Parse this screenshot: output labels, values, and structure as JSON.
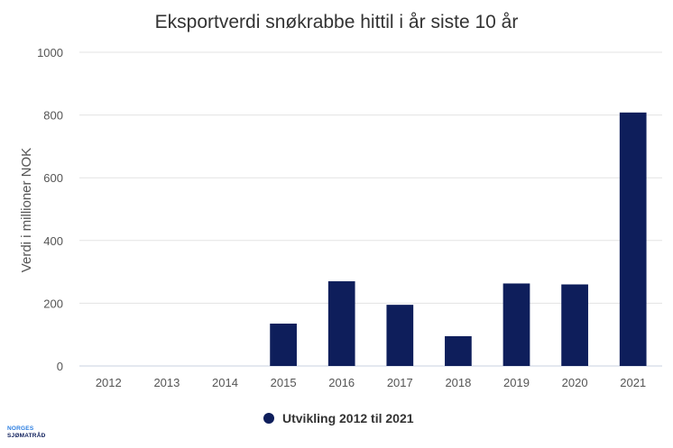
{
  "logo": {
    "line1": "NORGES",
    "line2": "SJØMATRÅD"
  },
  "colors": {
    "bar": "#0e1e5b",
    "grid": "#e3e3e3",
    "text": "#333333"
  },
  "chart_data": {
    "type": "bar",
    "title": "Eksportverdi snøkrabbe hittil i år siste 10 år",
    "xlabel": "",
    "ylabel": "Verdi i millioner NOK",
    "categories": [
      "2012",
      "2013",
      "2014",
      "2015",
      "2016",
      "2017",
      "2018",
      "2019",
      "2020",
      "2021"
    ],
    "series": [
      {
        "name": "Utvikling 2012 til 2021",
        "values": [
          0,
          0,
          0,
          135,
          270,
          195,
          95,
          263,
          260,
          808
        ]
      }
    ],
    "ylim": [
      0,
      1000
    ],
    "yticks": [
      0,
      200,
      400,
      600,
      800,
      1000
    ],
    "grid": true,
    "legend_position": "bottom"
  }
}
